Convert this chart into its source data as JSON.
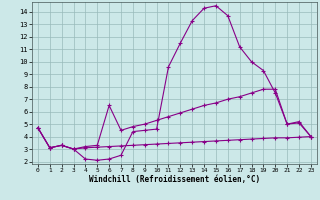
{
  "xlabel": "Windchill (Refroidissement éolien,°C)",
  "bg_color": "#cce8e8",
  "line_color": "#880088",
  "grid_color": "#99bbbb",
  "xlim": [
    -0.5,
    23.5
  ],
  "ylim": [
    1.8,
    14.8
  ],
  "xticks": [
    0,
    1,
    2,
    3,
    4,
    5,
    6,
    7,
    8,
    9,
    10,
    11,
    12,
    13,
    14,
    15,
    16,
    17,
    18,
    19,
    20,
    21,
    22,
    23
  ],
  "yticks": [
    2,
    3,
    4,
    5,
    6,
    7,
    8,
    9,
    10,
    11,
    12,
    13,
    14
  ],
  "line1_x": [
    0,
    1,
    2,
    3,
    4,
    5,
    6,
    7,
    8,
    9,
    10,
    11,
    12,
    13,
    14,
    15,
    16,
    17,
    18,
    19,
    20,
    21,
    22,
    23
  ],
  "line1_y": [
    4.7,
    3.1,
    3.3,
    3.0,
    2.2,
    2.1,
    2.2,
    2.5,
    4.4,
    4.5,
    4.6,
    9.6,
    11.5,
    13.3,
    14.3,
    14.5,
    13.7,
    11.2,
    10.0,
    9.3,
    7.5,
    5.0,
    5.1,
    4.0
  ],
  "line2_x": [
    0,
    1,
    2,
    3,
    4,
    5,
    6,
    7,
    8,
    9,
    10,
    11,
    12,
    13,
    14,
    15,
    16,
    17,
    18,
    19,
    20,
    21,
    22,
    23
  ],
  "line2_y": [
    4.7,
    3.1,
    3.3,
    3.0,
    3.2,
    3.3,
    6.5,
    4.5,
    4.8,
    5.0,
    5.3,
    5.6,
    5.9,
    6.2,
    6.5,
    6.7,
    7.0,
    7.2,
    7.5,
    7.8,
    7.8,
    5.0,
    5.2,
    4.0
  ],
  "line3_x": [
    0,
    1,
    2,
    3,
    4,
    5,
    6,
    7,
    8,
    9,
    10,
    11,
    12,
    13,
    14,
    15,
    16,
    17,
    18,
    19,
    20,
    21,
    22,
    23
  ],
  "line3_y": [
    4.7,
    3.1,
    3.3,
    3.0,
    3.1,
    3.15,
    3.2,
    3.25,
    3.3,
    3.35,
    3.4,
    3.45,
    3.5,
    3.55,
    3.6,
    3.65,
    3.7,
    3.75,
    3.8,
    3.85,
    3.9,
    3.9,
    3.95,
    4.0
  ]
}
